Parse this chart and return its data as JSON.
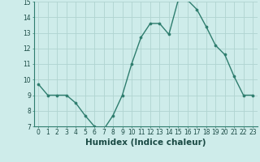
{
  "x": [
    0,
    1,
    2,
    3,
    4,
    5,
    6,
    7,
    8,
    9,
    10,
    11,
    12,
    13,
    14,
    15,
    16,
    17,
    18,
    19,
    20,
    21,
    22,
    23
  ],
  "y": [
    9.7,
    9.0,
    9.0,
    9.0,
    8.5,
    7.7,
    7.0,
    6.8,
    7.7,
    9.0,
    11.0,
    12.7,
    13.6,
    13.6,
    12.9,
    15.1,
    15.1,
    14.5,
    13.4,
    12.2,
    11.6,
    10.2,
    9.0,
    9.0
  ],
  "xlabel": "Humidex (Indice chaleur)",
  "ylim": [
    7,
    15
  ],
  "xlim": [
    -0.5,
    23.5
  ],
  "yticks": [
    7,
    8,
    9,
    10,
    11,
    12,
    13,
    14,
    15
  ],
  "xticks": [
    0,
    1,
    2,
    3,
    4,
    5,
    6,
    7,
    8,
    9,
    10,
    11,
    12,
    13,
    14,
    15,
    16,
    17,
    18,
    19,
    20,
    21,
    22,
    23
  ],
  "line_color": "#2e7d6e",
  "marker_color": "#2e7d6e",
  "bg_color": "#ceecea",
  "grid_color": "#b0d4d0",
  "tick_label_fontsize": 5.5,
  "xlabel_fontsize": 7.5
}
